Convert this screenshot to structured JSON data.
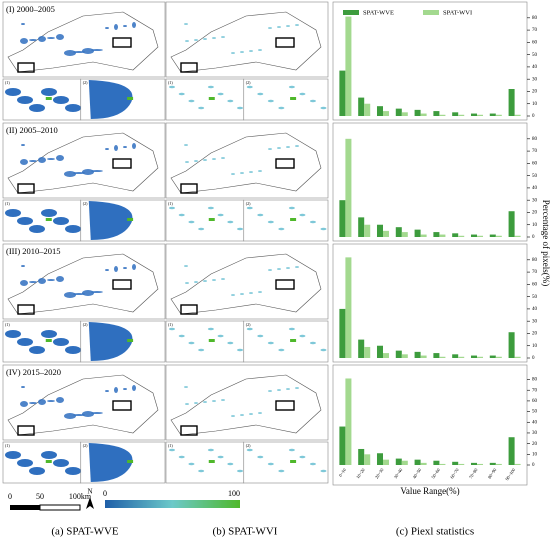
{
  "panels": [
    {
      "label": "(I) 2000–2005"
    },
    {
      "label": "(II) 2005–2010"
    },
    {
      "label": "(III) 2010–2015"
    },
    {
      "label": "(IV) 2015–2020"
    }
  ],
  "inset_labels": [
    "(1)",
    "(2)"
  ],
  "scale_bar": {
    "labels": [
      "0",
      "50",
      "100km"
    ],
    "north": "N"
  },
  "colorbar": {
    "ticks": [
      0,
      100
    ]
  },
  "captions": [
    "(a) SPAT-WVE",
    "(b) SPAT-WVI",
    "(c) Piexl statistics"
  ],
  "chart_data": [
    {
      "type": "bar",
      "ylabel": "Percentage of pixels(%)",
      "legend": "top",
      "ylim": [
        0,
        88
      ],
      "yticks": [
        0,
        10,
        20,
        30,
        40,
        50,
        60,
        70,
        80
      ],
      "series": [
        {
          "name": "SPAT-WVE",
          "color": "#3d9c3d",
          "values": [
            37,
            15,
            8,
            6,
            5,
            4,
            3,
            2,
            2,
            22
          ]
        },
        {
          "name": "SPAT-WVI",
          "color": "#a3d98f",
          "values": [
            81,
            10,
            4,
            3,
            2,
            1,
            1,
            1,
            1,
            1
          ]
        }
      ]
    },
    {
      "type": "bar",
      "ylim": [
        0,
        88
      ],
      "yticks": [
        0,
        10,
        20,
        30,
        40,
        50,
        60,
        70,
        80
      ],
      "series": [
        {
          "color": "#3d9c3d",
          "values": [
            30,
            16,
            10,
            8,
            6,
            4,
            3,
            2,
            2,
            21
          ]
        },
        {
          "color": "#a3d98f",
          "values": [
            80,
            10,
            5,
            4,
            2,
            2,
            1,
            1,
            1,
            1
          ]
        }
      ]
    },
    {
      "type": "bar",
      "ylim": [
        0,
        88
      ],
      "yticks": [
        0,
        10,
        20,
        30,
        40,
        50,
        60,
        70,
        80
      ],
      "series": [
        {
          "color": "#3d9c3d",
          "values": [
            40,
            15,
            10,
            6,
            5,
            4,
            3,
            2,
            2,
            21
          ]
        },
        {
          "color": "#a3d98f",
          "values": [
            82,
            9,
            4,
            3,
            2,
            1,
            1,
            1,
            1,
            1
          ]
        }
      ]
    },
    {
      "type": "bar",
      "xlabel": "Value Range(%)",
      "ylim": [
        0,
        88
      ],
      "yticks": [
        0,
        10,
        20,
        30,
        40,
        50,
        60,
        70,
        80
      ],
      "categories": [
        "0~10",
        "10~20",
        "20~30",
        "30~40",
        "40~50",
        "50~60",
        "60~70",
        "70~80",
        "80~90",
        "90~100"
      ],
      "series": [
        {
          "color": "#3d9c3d",
          "values": [
            36,
            15,
            11,
            6,
            5,
            4,
            3,
            2,
            2,
            26
          ]
        },
        {
          "color": "#a3d98f",
          "values": [
            81,
            10,
            5,
            4,
            2,
            1,
            1,
            1,
            1,
            1
          ]
        }
      ]
    }
  ]
}
